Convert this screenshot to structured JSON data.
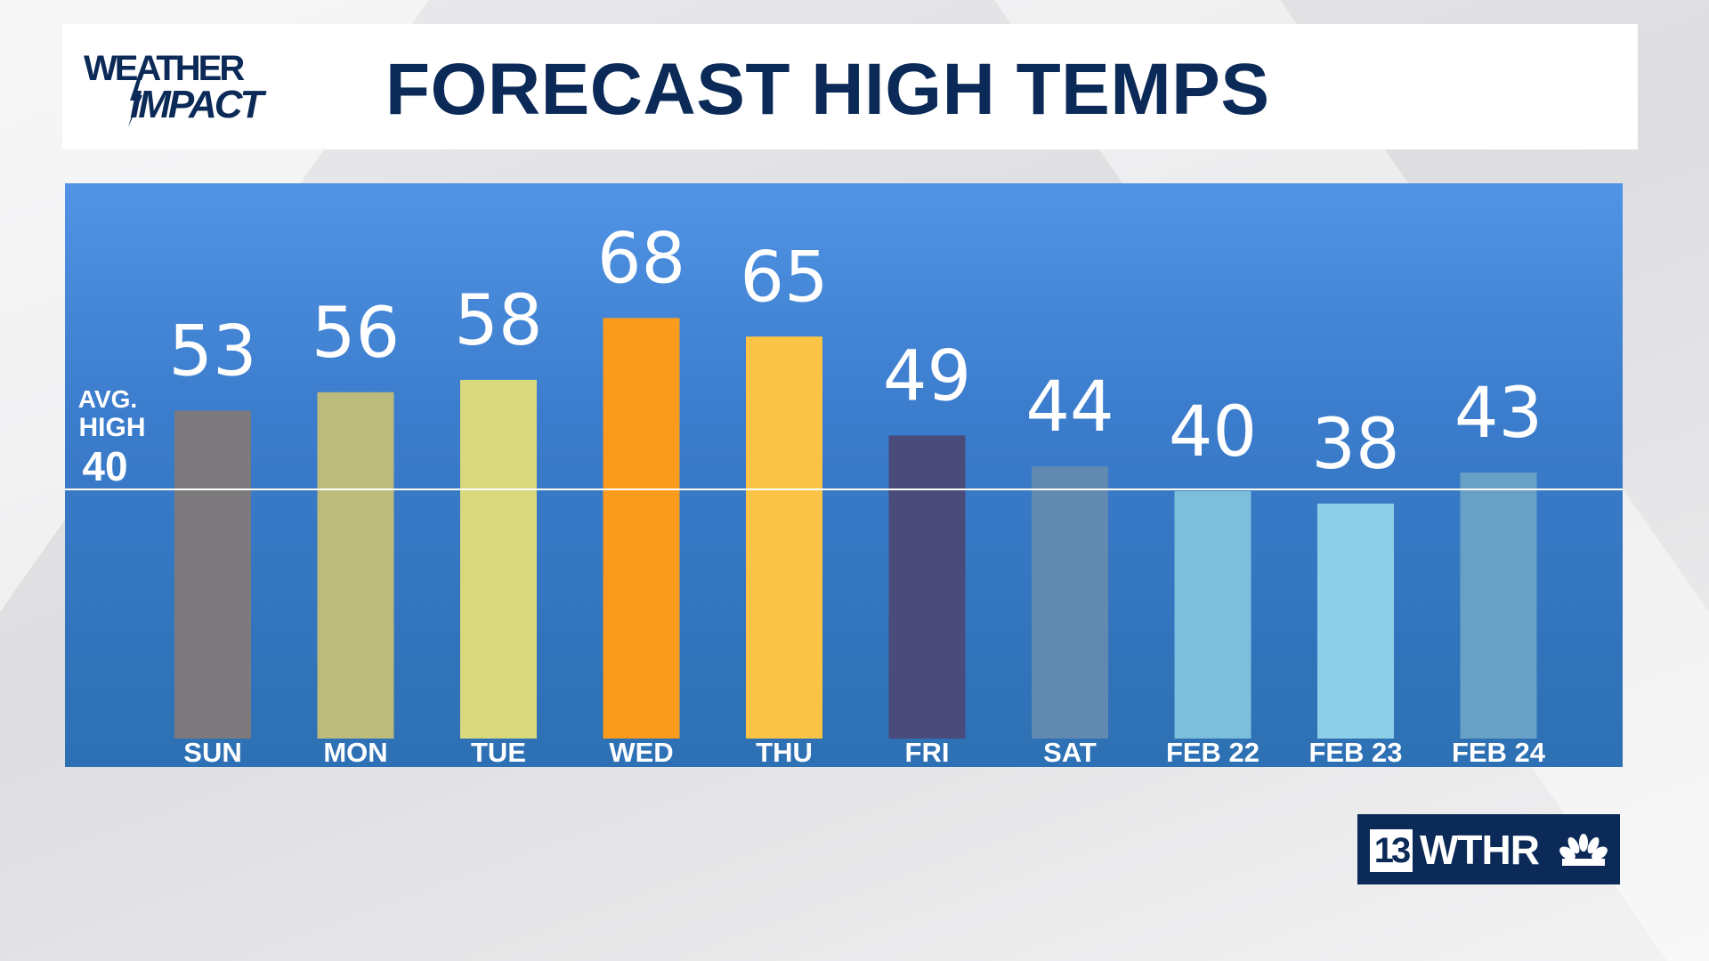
{
  "header": {
    "logo_line1": "WEATHER",
    "logo_line2": "IMPACT",
    "title": "FORECAST HIGH TEMPS"
  },
  "brand": {
    "number": "13",
    "name": "WTHR",
    "network_icon": "peacock-icon"
  },
  "average": {
    "label_line1": "AVG.",
    "label_line2": "HIGH",
    "value": 40
  },
  "colors": {
    "header_text": "#0b2a57",
    "panel_top": "#5193e4",
    "panel_bottom": "#2d70b3",
    "avg_line": "#ffffff"
  },
  "chart_data": {
    "type": "bar",
    "title": "FORECAST HIGH TEMPS",
    "categories": [
      "SUN",
      "MON",
      "TUE",
      "WED",
      "THU",
      "FRI",
      "SAT",
      "FEB 22",
      "FEB 23",
      "FEB 24"
    ],
    "values": [
      53,
      56,
      58,
      68,
      65,
      49,
      44,
      40,
      38,
      43
    ],
    "bar_colors": [
      "#7c7a7c",
      "#bcbb7c",
      "#d8d87d",
      "#fb9b1d",
      "#fcc446",
      "#4a4a7b",
      "#6289b0",
      "#7cbfdd",
      "#8ccfe7",
      "#68a0c6"
    ],
    "reference_line": {
      "label": "AVG. HIGH",
      "value": 40
    },
    "xlabel": "",
    "ylabel": "",
    "ylim": [
      0,
      68
    ],
    "grid": false,
    "legend": "none",
    "data_labels": true
  }
}
